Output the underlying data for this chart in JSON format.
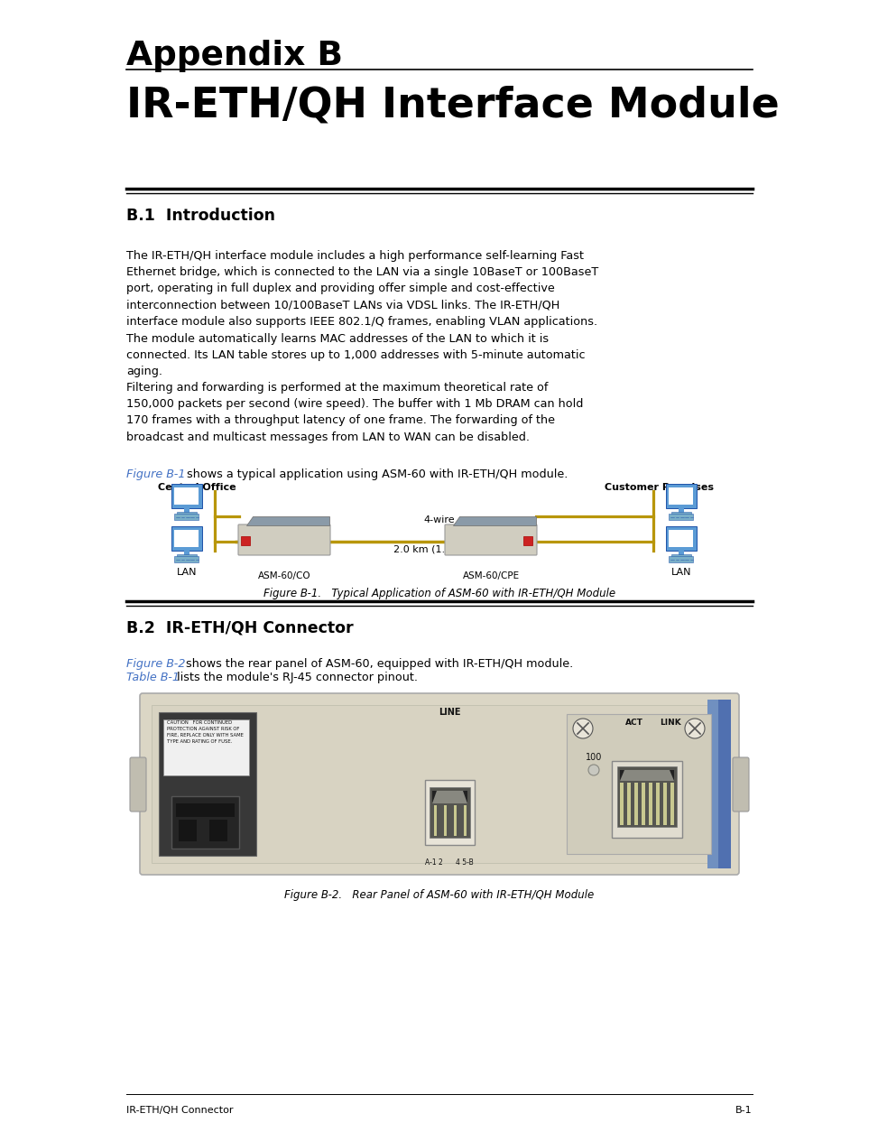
{
  "bg_color": "#ffffff",
  "title_line1": "Appendix B",
  "title_line2": "IR-ETH/QH Interface Module",
  "section1_title": "B.1  Introduction",
  "section1_para1": "The IR-ETH/QH interface module includes a high performance self-learning Fast\nEthernet bridge, which is connected to the LAN via a single 10BaseT or 100BaseT\nport, operating in full duplex and providing offer simple and cost-effective\ninterconnection between 10/100BaseT LANs via VDSL links. The IR-ETH/QH\ninterface module also supports IEEE 802.1/Q frames, enabling VLAN applications.",
  "section1_para2": "The module automatically learns MAC addresses of the LAN to which it is\nconnected. Its LAN table stores up to 1,000 addresses with 5-minute automatic\naging.",
  "section1_para3": "Filtering and forwarding is performed at the maximum theoretical rate of\n150,000 packets per second (wire speed). The buffer with 1 Mb DRAM can hold\n170 frames with a throughput latency of one frame. The forwarding of the\nbroadcast and multicast messages from LAN to WAN can be disabled.",
  "fig1_ref_text": "Figure B-1",
  "fig1_ref_rest": " shows a typical application using ASM-60 with IR-ETH/QH module.",
  "fig1_label_left": "Central Office",
  "fig1_label_right": "Customer Premises",
  "fig1_co_label": "ASM-60/CO",
  "fig1_cpe_label": "ASM-60/CPE",
  "fig1_wire_label": "4-wire",
  "fig1_dist_label": "2.0 km (1.2 miles)",
  "fig1_lan_left": "LAN",
  "fig1_lan_right": "LAN",
  "fig1_caption": "Figure B-1.   Typical Application of ASM-60 with IR-ETH/QH Module",
  "section2_title": "B.2  IR-ETH/QH Connector",
  "section2_para1_ref": "Figure B-2",
  "section2_para1_rest": " shows the rear panel of ASM-60, equipped with IR-ETH/QH module.",
  "section2_para2_ref": "Table B-1",
  "section2_para2_rest": " lists the module's RJ-45 connector pinout.",
  "fig2_caption": "Figure B-2.   Rear Panel of ASM-60 with IR-ETH/QH Module",
  "footer_left": "IR-ETH/QH Connector",
  "footer_right": "B-1",
  "link_color": "#4472c4",
  "text_color": "#000000",
  "header_color": "#000000",
  "section_color": "#000000",
  "diagram_wire_color": "#b8960a",
  "diagram_device_body": "#c0bdb0",
  "diagram_device_top": "#6a7a8a",
  "diagram_computer_body": "#5b9bd5",
  "panel_bg": "#ddd8c8",
  "panel_dark": "#404040"
}
